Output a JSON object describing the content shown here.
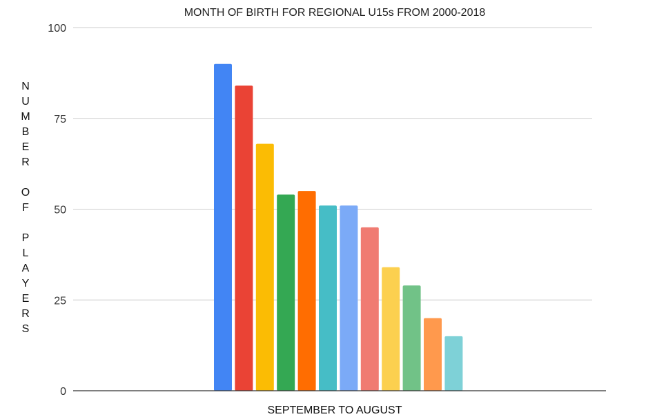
{
  "chart_data": {
    "type": "bar",
    "title": "MONTH OF BIRTH FOR REGIONAL U15s FROM 2000-2018",
    "xlabel": "SEPTEMBER TO AUGUST",
    "ylabel": "NUMBER OF PLAYERS",
    "ylim": [
      0,
      100
    ],
    "yticks": [
      0,
      25,
      50,
      75,
      100
    ],
    "grid": true,
    "legend": "none",
    "values": [
      90,
      84,
      68,
      54,
      55,
      51,
      51,
      45,
      34,
      29,
      20,
      15
    ],
    "colors": [
      "#4285f4",
      "#ea4335",
      "#fbbc04",
      "#34a853",
      "#ff6d01",
      "#46bdc6",
      "#7baaf7",
      "#f07b72",
      "#fcd04f",
      "#71c287",
      "#ff994d",
      "#7ed1d7"
    ]
  }
}
